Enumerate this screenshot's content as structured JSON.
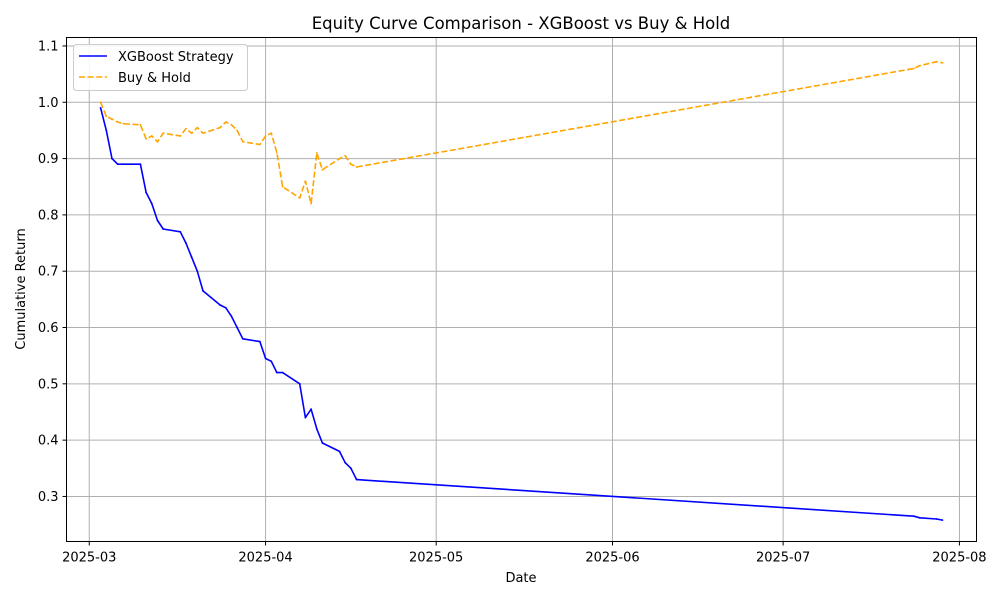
{
  "chart_data": {
    "type": "line",
    "title": "Equity Curve Comparison - XGBoost vs Buy & Hold",
    "xlabel": "Date",
    "ylabel": "Cumulative Return",
    "x_ticks": [
      "2025-03",
      "2025-04",
      "2025-05",
      "2025-06",
      "2025-07",
      "2025-08"
    ],
    "y_ticks": [
      "0.3",
      "0.4",
      "0.5",
      "0.6",
      "0.7",
      "0.8",
      "0.9",
      "1.0",
      "1.1"
    ],
    "xlim": [
      "2025-02-25",
      "2025-08-04"
    ],
    "ylim": [
      0.22,
      1.115
    ],
    "grid": true,
    "legend_position": "upper-left",
    "series": [
      {
        "name": "XGBoost Strategy",
        "color": "#0000ff",
        "style": "solid",
        "x": [
          "2025-03-03",
          "2025-03-04",
          "2025-03-05",
          "2025-03-06",
          "2025-03-07",
          "2025-03-10",
          "2025-03-11",
          "2025-03-12",
          "2025-03-13",
          "2025-03-14",
          "2025-03-17",
          "2025-03-18",
          "2025-03-19",
          "2025-03-20",
          "2025-03-21",
          "2025-03-24",
          "2025-03-25",
          "2025-03-26",
          "2025-03-27",
          "2025-03-28",
          "2025-03-31",
          "2025-04-01",
          "2025-04-02",
          "2025-04-03",
          "2025-04-04",
          "2025-04-07",
          "2025-04-08",
          "2025-04-09",
          "2025-04-10",
          "2025-04-11",
          "2025-04-14",
          "2025-04-15",
          "2025-04-16",
          "2025-04-17",
          "2025-07-24",
          "2025-07-25",
          "2025-07-28",
          "2025-07-29"
        ],
        "y": [
          0.99,
          0.95,
          0.9,
          0.89,
          0.89,
          0.89,
          0.84,
          0.82,
          0.79,
          0.775,
          0.77,
          0.75,
          0.725,
          0.7,
          0.665,
          0.64,
          0.635,
          0.62,
          0.6,
          0.58,
          0.575,
          0.545,
          0.54,
          0.52,
          0.52,
          0.5,
          0.44,
          0.455,
          0.42,
          0.395,
          0.38,
          0.36,
          0.35,
          0.33,
          0.265,
          0.262,
          0.26,
          0.258
        ]
      },
      {
        "name": "Buy & Hold",
        "color": "#ffa500",
        "style": "dashed",
        "x": [
          "2025-03-03",
          "2025-03-04",
          "2025-03-05",
          "2025-03-06",
          "2025-03-07",
          "2025-03-10",
          "2025-03-11",
          "2025-03-12",
          "2025-03-13",
          "2025-03-14",
          "2025-03-17",
          "2025-03-18",
          "2025-03-19",
          "2025-03-20",
          "2025-03-21",
          "2025-03-24",
          "2025-03-25",
          "2025-03-26",
          "2025-03-27",
          "2025-03-28",
          "2025-03-31",
          "2025-04-01",
          "2025-04-02",
          "2025-04-03",
          "2025-04-04",
          "2025-04-07",
          "2025-04-08",
          "2025-04-09",
          "2025-04-10",
          "2025-04-11",
          "2025-04-14",
          "2025-04-15",
          "2025-04-16",
          "2025-04-17",
          "2025-07-24",
          "2025-07-25",
          "2025-07-28",
          "2025-07-29"
        ],
        "y": [
          1.0,
          0.975,
          0.97,
          0.965,
          0.962,
          0.96,
          0.935,
          0.94,
          0.93,
          0.945,
          0.94,
          0.953,
          0.945,
          0.955,
          0.945,
          0.955,
          0.965,
          0.96,
          0.95,
          0.93,
          0.925,
          0.94,
          0.945,
          0.91,
          0.85,
          0.83,
          0.86,
          0.82,
          0.91,
          0.88,
          0.9,
          0.905,
          0.89,
          0.885,
          1.06,
          1.065,
          1.072,
          1.07
        ]
      }
    ]
  }
}
